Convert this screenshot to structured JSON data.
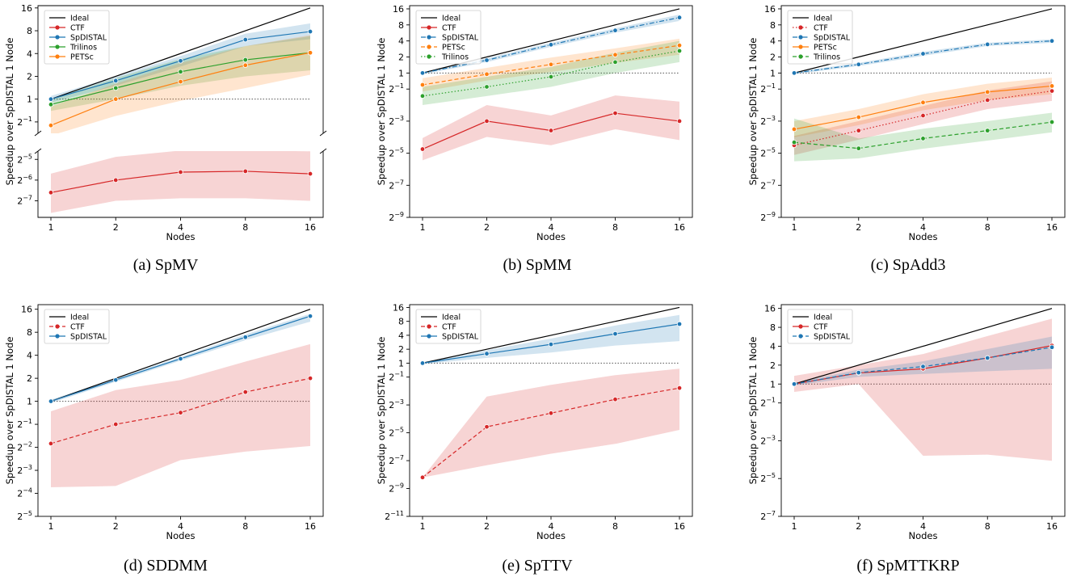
{
  "figure": {
    "xlabel": "Nodes",
    "ylabel": "Speedup over SpDISTAL 1 Node",
    "colors": {
      "Ideal": "#000000",
      "CTF": "#d62728",
      "SpDISTAL": "#1f77b4",
      "PETSc": "#ff7f0e",
      "Trilinos": "#2ca02c",
      "reference": "#555555"
    }
  },
  "chart_data": [
    {
      "id": "a",
      "caption": "(a) SpMV",
      "type": "line",
      "broken_axis": true,
      "xlabel": "Nodes",
      "ylabel": "Speedup over SpDISTAL 1 Node",
      "x": [
        1,
        2,
        4,
        8,
        16
      ],
      "xticks": [
        "1",
        "2",
        "4",
        "8",
        "16"
      ],
      "yscale": "log2",
      "top_ylim_log2": [
        -1.5,
        4.1
      ],
      "top_yticks": [
        "2^-1",
        "1",
        "2",
        "4",
        "8",
        "16"
      ],
      "bottom_ylim_log2": [
        -7.8,
        -4.6
      ],
      "bottom_yticks": [
        "2^-7",
        "2^-6",
        "2^-5"
      ],
      "legend": "upper left",
      "series": [
        {
          "name": "Ideal",
          "values": [
            1,
            2,
            4,
            8,
            16
          ],
          "style": "solid",
          "marker": "none"
        },
        {
          "name": "CTF",
          "values": [
            0.0103,
            0.0156,
            0.0204,
            0.021,
            0.0193
          ],
          "style": "solid",
          "marker": "diamond",
          "band_low": [
            0.0052,
            0.0078,
            0.0085,
            0.0085,
            0.0078
          ],
          "band_high": [
            0.0194,
            0.034,
            0.042,
            0.042,
            0.041
          ]
        },
        {
          "name": "SpDISTAL",
          "values": [
            1,
            1.75,
            3.2,
            6.1,
            7.8
          ],
          "style": "solid",
          "marker": "circle",
          "band_low": [
            0.9,
            1.5,
            2.7,
            5.0,
            6.2
          ],
          "band_high": [
            1.1,
            2.0,
            3.7,
            7.3,
            10.0
          ]
        },
        {
          "name": "Trilinos",
          "values": [
            0.85,
            1.4,
            2.3,
            3.3,
            4.1
          ],
          "style": "solid",
          "marker": "diamond",
          "band_low": [
            0.7,
            1.0,
            1.5,
            2.0,
            2.4
          ],
          "band_high": [
            1.0,
            1.9,
            3.4,
            5.0,
            6.8
          ]
        },
        {
          "name": "PETSc",
          "values": [
            0.45,
            1.0,
            1.7,
            2.8,
            4.1
          ],
          "style": "solid",
          "marker": "square",
          "band_low": [
            0.33,
            0.6,
            0.95,
            1.4,
            2.1
          ],
          "band_high": [
            0.8,
            1.6,
            3.0,
            5.0,
            7.0
          ]
        }
      ],
      "reference_line": 1
    },
    {
      "id": "b",
      "caption": "(b) SpMM",
      "type": "line",
      "xlabel": "Nodes",
      "ylabel": "Speedup over SpDISTAL 1 Node",
      "x": [
        1,
        2,
        4,
        8,
        16
      ],
      "xticks": [
        "1",
        "2",
        "4",
        "8",
        "16"
      ],
      "yscale": "log2",
      "ylim_log2": [
        -9,
        4.2
      ],
      "yticks": [
        "2^-9",
        "2^-7",
        "2^-5",
        "2^-3",
        "2^-1",
        "1",
        "2",
        "4",
        "8",
        "16"
      ],
      "legend": "upper left",
      "series": [
        {
          "name": "Ideal",
          "values": [
            1,
            2,
            4,
            8,
            16
          ],
          "style": "solid",
          "marker": "none"
        },
        {
          "name": "CTF",
          "values": [
            0.0373,
            0.125,
            0.0833,
            0.176,
            0.125
          ],
          "style": "solid",
          "marker": "diamond",
          "band_low": [
            0.023,
            0.063,
            0.044,
            0.088,
            0.055
          ],
          "band_high": [
            0.06,
            0.25,
            0.16,
            0.38,
            0.29
          ]
        },
        {
          "name": "SpDISTAL",
          "values": [
            1,
            1.74,
            3.4,
            6.3,
            11.0
          ],
          "style": "dashdot",
          "marker": "circle",
          "band_low": [
            0.95,
            1.6,
            3.1,
            5.7,
            9.5
          ],
          "band_high": [
            1.05,
            1.9,
            3.7,
            6.9,
            12.5
          ]
        },
        {
          "name": "PETSc",
          "values": [
            0.6,
            0.95,
            1.45,
            2.2,
            3.3
          ],
          "style": "dashed",
          "marker": "square",
          "band_low": [
            0.45,
            0.72,
            1.05,
            1.55,
            2.2
          ],
          "band_high": [
            0.8,
            1.25,
            1.95,
            2.9,
            4.4
          ]
        },
        {
          "name": "Trilinos",
          "values": [
            0.37,
            0.55,
            0.85,
            1.6,
            2.6
          ],
          "style": "dotted",
          "marker": "diamond",
          "band_low": [
            0.25,
            0.37,
            0.55,
            1.0,
            1.6
          ],
          "band_high": [
            0.55,
            0.85,
            1.3,
            2.4,
            4.0
          ]
        }
      ],
      "reference_line": 1
    },
    {
      "id": "c",
      "caption": "(c) SpAdd3",
      "type": "line",
      "xlabel": "Nodes",
      "ylabel": "Speedup over SpDISTAL 1 Node",
      "x": [
        1,
        2,
        4,
        8,
        16
      ],
      "xticks": [
        "1",
        "2",
        "4",
        "8",
        "16"
      ],
      "yscale": "log2",
      "ylim_log2": [
        -9,
        4.2
      ],
      "yticks": [
        "2^-9",
        "2^-7",
        "2^-5",
        "2^-3",
        "2^-1",
        "1",
        "2",
        "4",
        "8",
        "16"
      ],
      "legend": "upper left",
      "series": [
        {
          "name": "Ideal",
          "values": [
            1,
            2,
            4,
            8,
            16
          ],
          "style": "solid",
          "marker": "none"
        },
        {
          "name": "CTF",
          "values": [
            0.044,
            0.083,
            0.159,
            0.31,
            0.46
          ],
          "style": "dotted",
          "marker": "diamond",
          "band_low": [
            0.029,
            0.056,
            0.11,
            0.21,
            0.3
          ],
          "band_high": [
            0.066,
            0.125,
            0.24,
            0.47,
            0.7
          ]
        },
        {
          "name": "SpDISTAL",
          "values": [
            1,
            1.45,
            2.3,
            3.45,
            4.0
          ],
          "style": "dashdot",
          "marker": "circle",
          "band_low": [
            0.95,
            1.35,
            2.1,
            3.2,
            3.7
          ],
          "band_high": [
            1.05,
            1.55,
            2.5,
            3.7,
            4.3
          ]
        },
        {
          "name": "PETSc",
          "values": [
            0.088,
            0.148,
            0.28,
            0.44,
            0.57
          ],
          "style": "solid",
          "marker": "square",
          "band_low": [
            0.062,
            0.105,
            0.2,
            0.31,
            0.4
          ],
          "band_high": [
            0.125,
            0.21,
            0.4,
            0.63,
            0.82
          ]
        },
        {
          "name": "Trilinos",
          "values": [
            0.05,
            0.0385,
            0.059,
            0.083,
            0.12
          ],
          "style": "dashed",
          "marker": "diamond",
          "band_low": [
            0.022,
            0.025,
            0.038,
            0.054,
            0.077
          ],
          "band_high": [
            0.14,
            0.059,
            0.09,
            0.125,
            0.18
          ]
        }
      ],
      "reference_line": 1
    },
    {
      "id": "d",
      "caption": "(d) SDDMM",
      "type": "line",
      "xlabel": "Nodes",
      "ylabel": "Speedup over SpDISTAL 1 Node",
      "x": [
        1,
        2,
        4,
        8,
        16
      ],
      "xticks": [
        "1",
        "2",
        "4",
        "8",
        "16"
      ],
      "yscale": "log2",
      "ylim_log2": [
        -5,
        4.2
      ],
      "yticks": [
        "2^-5",
        "2^-4",
        "2^-3",
        "2^-2",
        "2^-1",
        "1",
        "2",
        "4",
        "8",
        "16"
      ],
      "legend": "upper left",
      "series": [
        {
          "name": "Ideal",
          "values": [
            1,
            2,
            4,
            8,
            16
          ],
          "style": "solid",
          "marker": "none"
        },
        {
          "name": "CTF",
          "values": [
            0.28,
            0.5,
            0.71,
            1.32,
            2.0
          ],
          "style": "dashed",
          "marker": "diamond",
          "band_low": [
            0.075,
            0.078,
            0.17,
            0.22,
            0.26
          ],
          "band_high": [
            0.74,
            1.4,
            1.9,
            3.3,
            5.6
          ]
        },
        {
          "name": "SpDISTAL",
          "values": [
            1,
            1.9,
            3.6,
            6.9,
            13.0
          ],
          "style": "solid",
          "marker": "circle",
          "band_low": [
            0.95,
            1.8,
            3.4,
            6.3,
            11.0
          ],
          "band_high": [
            1.05,
            2.0,
            3.8,
            7.5,
            14.0
          ]
        }
      ],
      "reference_line": 1
    },
    {
      "id": "e",
      "caption": "(e) SpTTV",
      "type": "line",
      "xlabel": "Nodes",
      "ylabel": "Speedup over SpDISTAL 1 Node",
      "x": [
        1,
        2,
        4,
        8,
        16
      ],
      "xticks": [
        "1",
        "2",
        "4",
        "8",
        "16"
      ],
      "yscale": "log2",
      "ylim_log2": [
        -11,
        4.2
      ],
      "yticks": [
        "2^-11",
        "2^-9",
        "2^-7",
        "2^-5",
        "2^-3",
        "2^-1",
        "1",
        "2",
        "4",
        "8",
        "16"
      ],
      "legend": "upper left",
      "series": [
        {
          "name": "Ideal",
          "values": [
            1,
            2,
            4,
            8,
            16
          ],
          "style": "solid",
          "marker": "none"
        },
        {
          "name": "CTF",
          "values": [
            0.00339,
            0.042,
            0.083,
            0.165,
            0.29
          ],
          "style": "dashed",
          "marker": "diamond",
          "band_low": [
            0.00339,
            0.0062,
            0.011,
            0.018,
            0.036
          ],
          "band_high": [
            0.00339,
            0.19,
            0.34,
            0.55,
            0.76
          ]
        },
        {
          "name": "SpDISTAL",
          "values": [
            1,
            1.6,
            2.55,
            4.3,
            7.0
          ],
          "style": "solid",
          "marker": "circle",
          "band_low": [
            0.95,
            1.3,
            1.7,
            2.4,
            3.0
          ],
          "band_high": [
            1.05,
            1.9,
            3.4,
            6.5,
            11.0
          ]
        }
      ],
      "reference_line": 1
    },
    {
      "id": "f",
      "caption": "(f) SpMTTKRP",
      "type": "line",
      "xlabel": "Nodes",
      "ylabel": "Speedup over SpDISTAL 1 Node",
      "x": [
        1,
        2,
        4,
        8,
        16
      ],
      "xticks": [
        "1",
        "2",
        "4",
        "8",
        "16"
      ],
      "yscale": "log2",
      "ylim_log2": [
        -7,
        4.2
      ],
      "yticks": [
        "2^-7",
        "2^-5",
        "2^-3",
        "2^-1",
        "1",
        "2",
        "4",
        "8",
        "16"
      ],
      "legend": "upper left",
      "series": [
        {
          "name": "Ideal",
          "values": [
            1,
            2,
            4,
            8,
            16
          ],
          "style": "solid",
          "marker": "none"
        },
        {
          "name": "CTF",
          "values": [
            1,
            1.5,
            1.75,
            2.6,
            4.1
          ],
          "style": "solid",
          "marker": "diamond",
          "band_low": [
            0.75,
            1.0,
            0.072,
            0.075,
            0.06
          ],
          "band_high": [
            1.35,
            2.0,
            3.0,
            5.8,
            11.0
          ]
        },
        {
          "name": "SpDISTAL",
          "values": [
            1,
            1.52,
            1.9,
            2.6,
            3.85
          ],
          "style": "dashed",
          "marker": "circle",
          "band_low": [
            0.95,
            1.3,
            1.45,
            1.6,
            1.75
          ],
          "band_high": [
            1.05,
            1.7,
            2.3,
            3.6,
            5.7
          ]
        }
      ],
      "reference_line": 1
    }
  ]
}
